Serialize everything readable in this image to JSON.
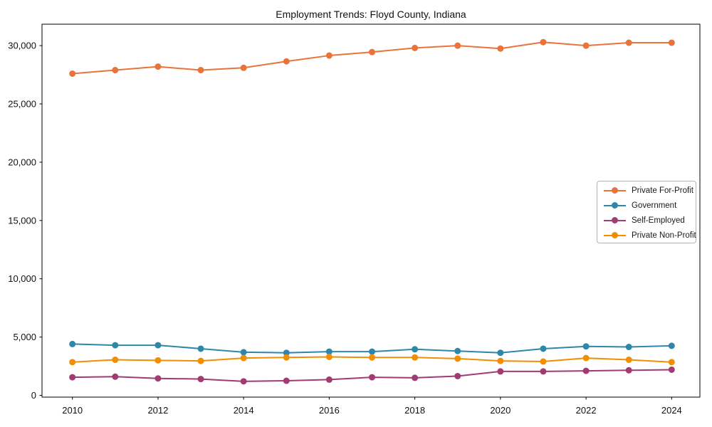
{
  "page": {
    "title": "Employment Trends: Floyd County, Indiana"
  },
  "chart_data": {
    "type": "line",
    "title": "Employment Trends: Floyd County, Indiana",
    "x": [
      2010,
      2011,
      2012,
      2013,
      2014,
      2015,
      2016,
      2017,
      2018,
      2019,
      2020,
      2021,
      2022,
      2023,
      2024
    ],
    "series": [
      {
        "name": "Private For-Profit",
        "color": "#E8743B",
        "values": [
          27600,
          27900,
          28200,
          27900,
          28100,
          28650,
          29150,
          29450,
          29800,
          30000,
          29750,
          30300,
          30000,
          30250,
          30250
        ]
      },
      {
        "name": "Government",
        "color": "#2E86AB",
        "values": [
          4400,
          4300,
          4300,
          4000,
          3700,
          3650,
          3750,
          3750,
          3950,
          3800,
          3650,
          4000,
          4200,
          4150,
          4250
        ]
      },
      {
        "name": "Self-Employed",
        "color": "#A23B72",
        "values": [
          1550,
          1600,
          1450,
          1400,
          1200,
          1250,
          1350,
          1550,
          1500,
          1650,
          2050,
          2050,
          2100,
          2150,
          2200
        ]
      },
      {
        "name": "Private Non-Profit",
        "color": "#F18F01",
        "values": [
          2850,
          3050,
          3000,
          2950,
          3200,
          3250,
          3300,
          3250,
          3250,
          3150,
          2950,
          2900,
          3200,
          3050,
          2850
        ]
      }
    ],
    "xlabel": "",
    "ylabel": "",
    "x_ticks": [
      2010,
      2012,
      2014,
      2016,
      2018,
      2020,
      2022,
      2024
    ],
    "y_ticks": [
      0,
      5000,
      10000,
      15000,
      20000,
      25000,
      30000
    ],
    "y_tick_labels": [
      "0",
      "5,000",
      "10,000",
      "15,000",
      "20,000",
      "25,000",
      "30,000"
    ],
    "xlim": [
      2009.29,
      2024.66
    ],
    "ylim": [
      -153,
      31840
    ],
    "grid": false,
    "marker": "o",
    "legend_position": "center right"
  }
}
